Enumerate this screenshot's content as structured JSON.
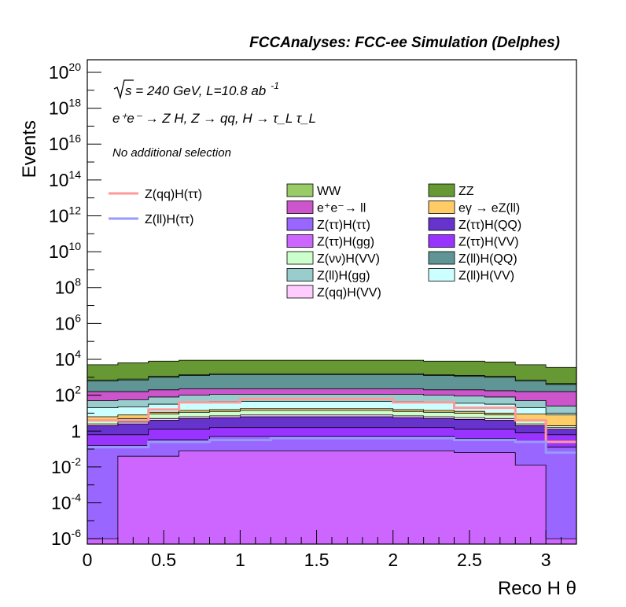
{
  "chart_data": {
    "type": "area",
    "title": "FCCAnalyses: FCC-ee Simulation (Delphes)",
    "xlabel": "Reco H θ",
    "ylabel": "Events",
    "xlim": [
      0,
      3.2
    ],
    "ylim_log10": [
      -6.3,
      20.7
    ],
    "log_scale_y": true,
    "grid": false,
    "x_ticks": [
      "0",
      "0.5",
      "1",
      "1.5",
      "2",
      "2.5",
      "3"
    ],
    "x_tick_values": [
      0,
      0.5,
      1,
      1.5,
      2,
      2.5,
      3
    ],
    "y_ticks": [
      {
        "base": "10",
        "exp": "-6",
        "value": -6
      },
      {
        "base": "10",
        "exp": "-4",
        "value": -4
      },
      {
        "base": "10",
        "exp": "-2",
        "value": -2
      },
      {
        "base": "1",
        "exp": "",
        "value": 0
      },
      {
        "base": "10",
        "exp": "2",
        "value": 2
      },
      {
        "base": "10",
        "exp": "4",
        "value": 4
      },
      {
        "base": "10",
        "exp": "6",
        "value": 6
      },
      {
        "base": "10",
        "exp": "8",
        "value": 8
      },
      {
        "base": "10",
        "exp": "10",
        "value": 10
      },
      {
        "base": "10",
        "exp": "12",
        "value": 12
      },
      {
        "base": "10",
        "exp": "14",
        "value": 14
      },
      {
        "base": "10",
        "exp": "16",
        "value": 16
      },
      {
        "base": "10",
        "exp": "18",
        "value": 18
      },
      {
        "base": "10",
        "exp": "20",
        "value": 20
      }
    ],
    "bin_edges": [
      0,
      0.2,
      0.4,
      0.6,
      0.8,
      1.0,
      1.2,
      1.4,
      1.6,
      1.8,
      2.0,
      2.2,
      2.4,
      2.6,
      2.8,
      3.0,
      3.2
    ],
    "annotations": {
      "energy_sqrt": "s",
      "energy_rest": " = 240 GeV, L=10.8 ab",
      "energy_sup": "-1",
      "process": "e⁺e⁻ → Z H, Z → qq, H → τ_L τ_L",
      "selection": "No additional selection"
    },
    "stack_log10_tops": [
      {
        "name": "Z(ττ)H(gg)",
        "color": "#cc66ff",
        "values": [
          -6,
          -1.4,
          -1.4,
          -1.1,
          -1.1,
          -1.1,
          -1.1,
          -1.1,
          -1.1,
          -1.1,
          -1.1,
          -1.1,
          -1.2,
          -1.2,
          -1.9,
          -6
        ]
      },
      {
        "name": "Z(ττ)H(ττ)",
        "color": "#9966ff",
        "values": [
          -0.8,
          -0.8,
          -0.5,
          -0.5,
          -0.3,
          -0.3,
          -0.3,
          -0.3,
          -0.3,
          -0.3,
          -0.3,
          -0.3,
          -0.4,
          -0.4,
          -0.6,
          -0.9
        ]
      },
      {
        "name": "Z(ττ)H(VV)",
        "color": "#9933ff",
        "values": [
          -0.2,
          -0.2,
          0.1,
          0.1,
          0.2,
          0.2,
          0.2,
          0.2,
          0.2,
          0.2,
          0.2,
          0.2,
          0.1,
          0.1,
          -0.1,
          -0.2
        ]
      },
      {
        "name": "Z(ττ)H(QQ)",
        "color": "#6633cc",
        "values": [
          0.3,
          0.4,
          0.6,
          0.7,
          0.75,
          0.8,
          0.8,
          0.8,
          0.8,
          0.8,
          0.75,
          0.7,
          0.65,
          0.6,
          0.3,
          0.1
        ]
      },
      {
        "name": "Z(qq)H(VV)",
        "color": "#ffccff",
        "values": [
          0.4,
          0.5,
          0.7,
          0.8,
          0.85,
          0.9,
          0.9,
          0.9,
          0.9,
          0.9,
          0.85,
          0.8,
          0.75,
          0.7,
          0.4,
          0.2
        ]
      },
      {
        "name": "Z(νν)H(VV)",
        "color": "#ccffcc",
        "values": [
          0.6,
          0.7,
          0.95,
          1.05,
          1.1,
          1.15,
          1.15,
          1.15,
          1.15,
          1.15,
          1.1,
          1.05,
          1.0,
          0.9,
          0.6,
          0.3
        ]
      },
      {
        "name": "eγ → eZ(ll)",
        "color": "#ffcc66",
        "values": [
          0.8,
          0.9,
          1.05,
          1.15,
          1.2,
          1.25,
          1.25,
          1.25,
          1.25,
          1.25,
          1.2,
          1.15,
          1.1,
          1.0,
          0.95,
          0.9
        ]
      },
      {
        "name": "Z(ll)H(VV)",
        "color": "#ccffff",
        "values": [
          1.3,
          1.35,
          1.5,
          1.6,
          1.65,
          1.65,
          1.65,
          1.65,
          1.65,
          1.65,
          1.65,
          1.6,
          1.55,
          1.5,
          1.3,
          1.0
        ]
      },
      {
        "name": "Z(ll)H(gg)",
        "color": "#99cccc",
        "values": [
          1.7,
          1.75,
          1.9,
          2.0,
          2.05,
          2.05,
          2.05,
          2.05,
          2.05,
          2.05,
          2.05,
          2.0,
          1.95,
          1.9,
          1.7,
          1.4
        ]
      },
      {
        "name": "e⁺e⁻→ ll",
        "color": "#cc55cc",
        "values": [
          2.2,
          2.2,
          2.3,
          2.35,
          2.35,
          2.35,
          2.35,
          2.35,
          2.35,
          2.35,
          2.35,
          2.3,
          2.3,
          2.25,
          2.2,
          2.2
        ]
      },
      {
        "name": "Z(ll)H(QQ)",
        "color": "#5f9595",
        "values": [
          2.8,
          2.85,
          3.0,
          3.1,
          3.15,
          3.15,
          3.15,
          3.15,
          3.15,
          3.15,
          3.15,
          3.1,
          3.05,
          3.0,
          2.8,
          2.6
        ]
      },
      {
        "name": "WW",
        "color": "#99cc66",
        "values": [
          2.85,
          2.9,
          3.05,
          3.15,
          3.2,
          3.2,
          3.2,
          3.2,
          3.2,
          3.2,
          3.2,
          3.15,
          3.1,
          3.05,
          2.85,
          2.65
        ]
      },
      {
        "name": "ZZ",
        "color": "#669933",
        "values": [
          3.7,
          3.8,
          3.9,
          3.95,
          3.95,
          3.95,
          3.95,
          3.95,
          3.95,
          3.95,
          3.95,
          3.9,
          3.9,
          3.85,
          3.7,
          3.55
        ]
      }
    ],
    "signal_lines_log10": [
      {
        "name": "Z(qq)H(ττ)",
        "color": "#ff9999",
        "values": [
          0.6,
          0.6,
          1.2,
          1.6,
          1.6,
          1.8,
          1.8,
          1.8,
          1.8,
          1.8,
          1.6,
          1.6,
          1.3,
          1.3,
          0.6,
          -0.6
        ]
      },
      {
        "name": "Z(ll)H(ττ)",
        "color": "#9999ff",
        "values": [
          -0.9,
          -0.9,
          -0.6,
          -0.6,
          -0.5,
          -0.5,
          -0.4,
          -0.4,
          -0.4,
          -0.4,
          -0.4,
          -0.4,
          -0.5,
          -0.5,
          -0.6,
          -1.2
        ]
      }
    ],
    "legend": {
      "lines": [
        {
          "label": "Z(qq)H(ττ)",
          "color": "#ff9999"
        },
        {
          "label": "Z(ll)H(ττ)",
          "color": "#9999ff"
        }
      ],
      "col1": [
        {
          "label": "WW",
          "color": "#99cc66"
        },
        {
          "label": "e⁺e⁻→ ll",
          "color": "#cc55cc"
        },
        {
          "label": "Z(ττ)H(ττ)",
          "color": "#9966ff"
        },
        {
          "label": "Z(ττ)H(gg)",
          "color": "#cc66ff"
        },
        {
          "label": "Z(νν)H(VV)",
          "color": "#ccffcc"
        },
        {
          "label": "Z(ll)H(gg)",
          "color": "#99cccc"
        },
        {
          "label": "Z(qq)H(VV)",
          "color": "#ffccff"
        }
      ],
      "col2": [
        {
          "label": "ZZ",
          "color": "#669933"
        },
        {
          "label": "eγ → eZ(ll)",
          "color": "#ffcc66"
        },
        {
          "label": "Z(ττ)H(QQ)",
          "color": "#6633cc"
        },
        {
          "label": "Z(ττ)H(VV)",
          "color": "#9933ff"
        },
        {
          "label": "Z(ll)H(QQ)",
          "color": "#5f9595"
        },
        {
          "label": "Z(ll)H(VV)",
          "color": "#ccffff"
        }
      ]
    }
  }
}
